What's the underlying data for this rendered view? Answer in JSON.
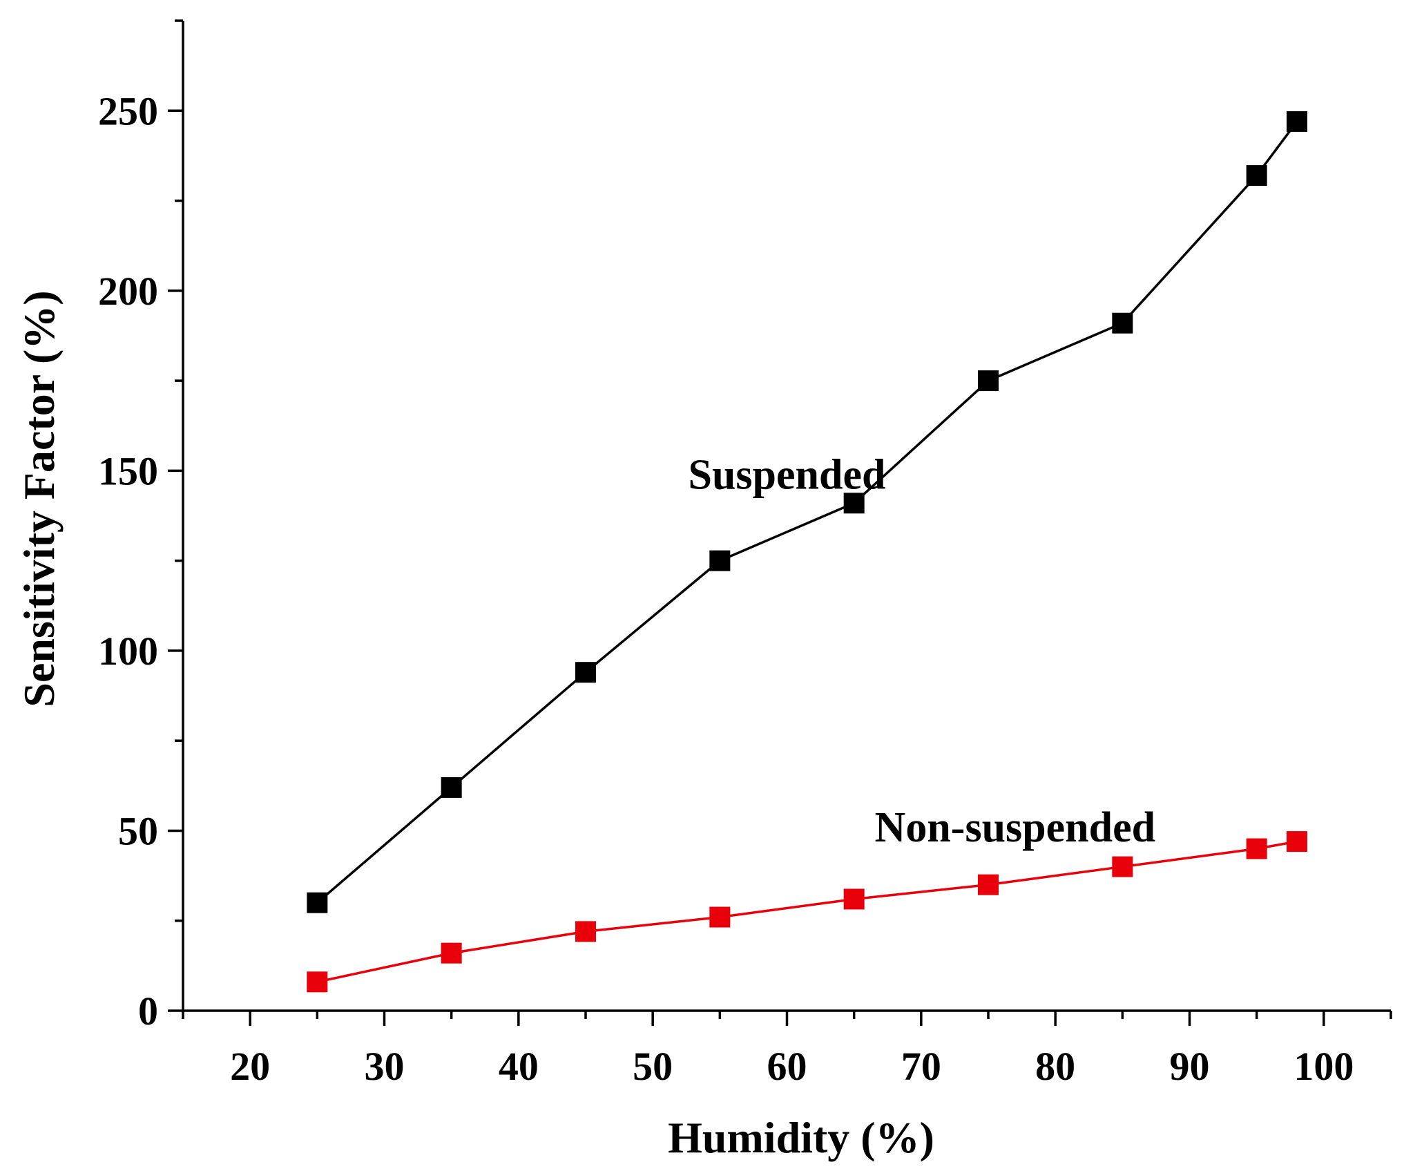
{
  "chart_data": {
    "type": "line",
    "title": "",
    "xlabel": "Humidity (%)",
    "ylabel": "Sensitivity Factor (%)",
    "xlim": [
      15,
      105
    ],
    "ylim": [
      0,
      275
    ],
    "xticks": [
      20,
      30,
      40,
      50,
      60,
      70,
      80,
      90,
      100
    ],
    "yticks": [
      0,
      50,
      100,
      150,
      200,
      250
    ],
    "grid": false,
    "legend": "none",
    "series": [
      {
        "name": "Suspended",
        "color": "#000000",
        "marker": "square",
        "x": [
          25,
          35,
          45,
          55,
          65,
          75,
          85,
          95,
          98
        ],
        "y": [
          30,
          62,
          94,
          125,
          141,
          175,
          191,
          232,
          247
        ]
      },
      {
        "name": "Non-suspended",
        "color": "#e8000b",
        "marker": "square",
        "x": [
          25,
          35,
          45,
          55,
          65,
          75,
          85,
          95,
          98
        ],
        "y": [
          8,
          16,
          22,
          26,
          31,
          35,
          40,
          45,
          47
        ]
      }
    ],
    "annotations": [
      {
        "text": "Suspended",
        "series": 0,
        "anchor_x": 60,
        "anchor_y": 145
      },
      {
        "text": "Non-suspended",
        "series": 1,
        "anchor_x": 77,
        "anchor_y": 47
      }
    ]
  }
}
